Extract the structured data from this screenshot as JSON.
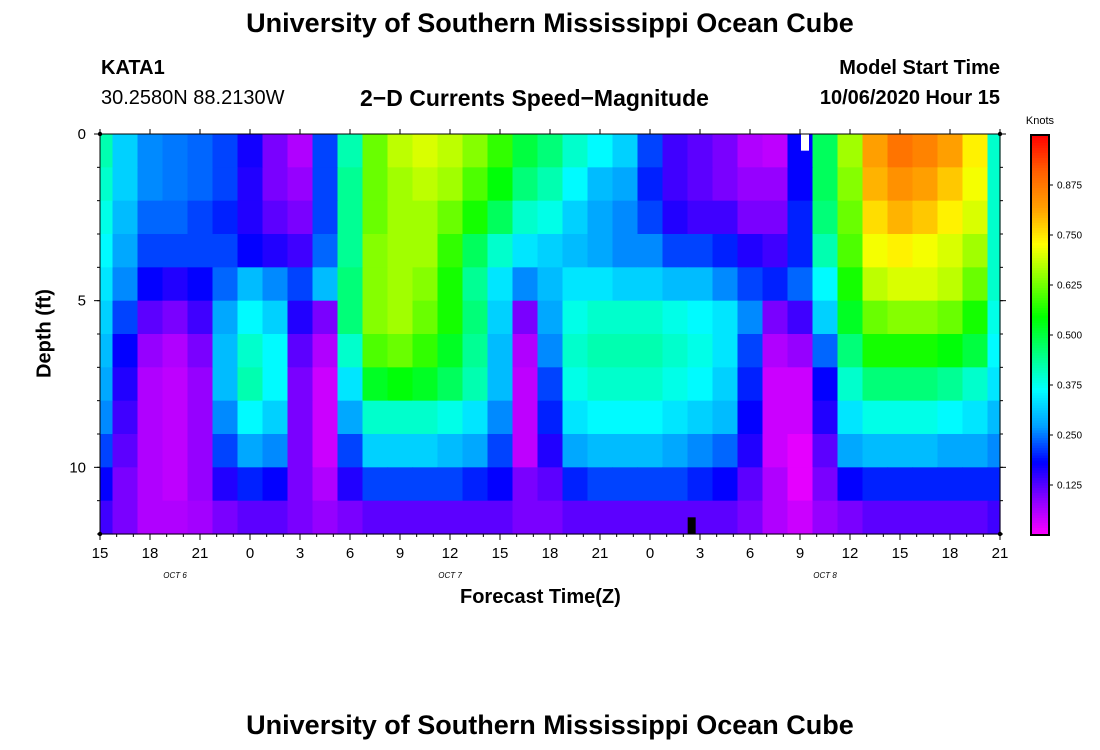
{
  "titles": {
    "top": "University of Southern Mississippi Ocean Cube",
    "bottom": "University of Southern Mississippi Ocean Cube"
  },
  "header": {
    "station": "KATA1",
    "location": "30.2580N 88.2130W",
    "subtitle": "2−D Currents Speed−Magnitude",
    "model_label": "Model Start Time",
    "model_time": "10/06/2020 Hour 15"
  },
  "colorbar": {
    "unit": "Knots",
    "ticks": [
      "0.125",
      "0.250",
      "0.375",
      "0.500",
      "0.625",
      "0.750",
      "0.875"
    ],
    "tick_values": [
      0.125,
      0.25,
      0.375,
      0.5,
      0.625,
      0.75,
      0.875
    ],
    "range": [
      0.0,
      1.0
    ],
    "colors": [
      "#ff00ff",
      "#8800ff",
      "#0000ff",
      "#00a0ff",
      "#00ffff",
      "#00ff80",
      "#00ff00",
      "#80ff00",
      "#ffff00",
      "#ffa000",
      "#ff6000",
      "#ff0000"
    ]
  },
  "chart_data": {
    "type": "heatmap",
    "title": "2−D Currents Speed−Magnitude",
    "xlabel": "Forecast Time(Z)",
    "ylabel": "Depth (ft)",
    "x_ticks": [
      "15",
      "18",
      "21",
      "0",
      "3",
      "6",
      "9",
      "12",
      "15",
      "18",
      "21",
      "0",
      "3",
      "6",
      "9",
      "12",
      "15",
      "18",
      "21"
    ],
    "x_range_hours": [
      0,
      54
    ],
    "date_labels": [
      {
        "label": "OCT 6",
        "hour": 4.5
      },
      {
        "label": "OCT 7",
        "hour": 21
      },
      {
        "label": "OCT 8",
        "hour": 43.5
      }
    ],
    "y_ticks": [
      0,
      5,
      10
    ],
    "ylim": [
      0,
      12
    ],
    "y_reversed": true,
    "depth_levels": [
      0.5,
      1.5,
      2.5,
      3.5,
      4.5,
      5.5,
      6.5,
      7.5,
      8.5,
      9.5,
      10.5,
      11.5
    ],
    "time_hours": [
      0,
      1.5,
      3,
      4.5,
      6,
      7.5,
      9,
      10.5,
      12,
      13.5,
      15,
      16.5,
      18,
      19.5,
      21,
      22.5,
      24,
      25.5,
      27,
      28.5,
      30,
      31.5,
      33,
      34.5,
      36,
      37.5,
      39,
      40.5,
      42,
      43.5,
      45,
      46.5,
      48,
      49.5,
      51,
      52.5,
      54
    ],
    "speed_knots": [
      [
        0.42,
        0.32,
        0.26,
        0.25,
        0.24,
        0.22,
        0.17,
        0.1,
        0.06,
        0.22,
        0.42,
        0.62,
        0.68,
        0.7,
        0.68,
        0.64,
        0.58,
        0.5,
        0.46,
        0.4,
        0.36,
        0.32,
        0.22,
        0.14,
        0.12,
        0.1,
        0.06,
        0.05,
        0.18,
        0.48,
        0.66,
        0.82,
        0.88,
        0.86,
        0.82,
        0.74,
        0.4
      ],
      [
        0.4,
        0.32,
        0.26,
        0.25,
        0.24,
        0.22,
        0.16,
        0.1,
        0.08,
        0.22,
        0.44,
        0.62,
        0.66,
        0.68,
        0.66,
        0.6,
        0.54,
        0.46,
        0.42,
        0.36,
        0.3,
        0.28,
        0.2,
        0.14,
        0.12,
        0.1,
        0.08,
        0.08,
        0.18,
        0.48,
        0.64,
        0.8,
        0.84,
        0.82,
        0.78,
        0.72,
        0.4
      ],
      [
        0.38,
        0.3,
        0.24,
        0.24,
        0.22,
        0.2,
        0.16,
        0.12,
        0.1,
        0.22,
        0.44,
        0.62,
        0.66,
        0.66,
        0.62,
        0.56,
        0.48,
        0.4,
        0.38,
        0.32,
        0.28,
        0.26,
        0.22,
        0.16,
        0.14,
        0.14,
        0.1,
        0.1,
        0.2,
        0.46,
        0.62,
        0.76,
        0.8,
        0.78,
        0.74,
        0.7,
        0.4
      ],
      [
        0.36,
        0.28,
        0.22,
        0.22,
        0.22,
        0.22,
        0.18,
        0.16,
        0.14,
        0.24,
        0.44,
        0.64,
        0.66,
        0.66,
        0.58,
        0.48,
        0.4,
        0.34,
        0.32,
        0.3,
        0.28,
        0.26,
        0.26,
        0.22,
        0.22,
        0.2,
        0.16,
        0.14,
        0.2,
        0.42,
        0.6,
        0.72,
        0.74,
        0.72,
        0.7,
        0.66,
        0.4
      ],
      [
        0.34,
        0.26,
        0.18,
        0.16,
        0.18,
        0.24,
        0.3,
        0.26,
        0.22,
        0.3,
        0.46,
        0.64,
        0.66,
        0.64,
        0.56,
        0.44,
        0.34,
        0.26,
        0.3,
        0.34,
        0.34,
        0.32,
        0.32,
        0.3,
        0.3,
        0.26,
        0.22,
        0.2,
        0.24,
        0.36,
        0.56,
        0.68,
        0.7,
        0.7,
        0.68,
        0.62,
        0.4
      ],
      [
        0.32,
        0.22,
        0.12,
        0.1,
        0.14,
        0.28,
        0.36,
        0.32,
        0.16,
        0.1,
        0.46,
        0.64,
        0.66,
        0.62,
        0.56,
        0.46,
        0.32,
        0.1,
        0.28,
        0.38,
        0.4,
        0.4,
        0.4,
        0.38,
        0.36,
        0.34,
        0.26,
        0.1,
        0.14,
        0.32,
        0.52,
        0.62,
        0.64,
        0.64,
        0.62,
        0.56,
        0.38
      ],
      [
        0.3,
        0.18,
        0.08,
        0.06,
        0.1,
        0.3,
        0.4,
        0.36,
        0.12,
        0.06,
        0.4,
        0.6,
        0.62,
        0.58,
        0.52,
        0.44,
        0.3,
        0.06,
        0.26,
        0.4,
        0.42,
        0.42,
        0.42,
        0.4,
        0.38,
        0.34,
        0.22,
        0.06,
        0.08,
        0.24,
        0.46,
        0.56,
        0.56,
        0.56,
        0.54,
        0.5,
        0.36
      ],
      [
        0.28,
        0.16,
        0.06,
        0.05,
        0.08,
        0.3,
        0.42,
        0.36,
        0.1,
        0.04,
        0.34,
        0.52,
        0.54,
        0.52,
        0.48,
        0.42,
        0.3,
        0.05,
        0.22,
        0.38,
        0.4,
        0.4,
        0.4,
        0.38,
        0.36,
        0.32,
        0.2,
        0.04,
        0.04,
        0.18,
        0.4,
        0.46,
        0.46,
        0.46,
        0.44,
        0.4,
        0.34
      ],
      [
        0.26,
        0.14,
        0.06,
        0.05,
        0.08,
        0.26,
        0.36,
        0.32,
        0.1,
        0.04,
        0.28,
        0.4,
        0.4,
        0.4,
        0.38,
        0.34,
        0.26,
        0.05,
        0.2,
        0.34,
        0.36,
        0.36,
        0.36,
        0.34,
        0.32,
        0.3,
        0.18,
        0.04,
        0.04,
        0.16,
        0.34,
        0.38,
        0.38,
        0.38,
        0.36,
        0.34,
        0.3
      ],
      [
        0.22,
        0.12,
        0.06,
        0.05,
        0.08,
        0.22,
        0.28,
        0.26,
        0.1,
        0.04,
        0.22,
        0.32,
        0.32,
        0.32,
        0.3,
        0.28,
        0.22,
        0.05,
        0.16,
        0.28,
        0.3,
        0.3,
        0.3,
        0.28,
        0.26,
        0.24,
        0.16,
        0.04,
        0.02,
        0.12,
        0.28,
        0.3,
        0.3,
        0.3,
        0.28,
        0.28,
        0.26
      ],
      [
        0.18,
        0.1,
        0.06,
        0.05,
        0.08,
        0.16,
        0.2,
        0.18,
        0.1,
        0.06,
        0.16,
        0.22,
        0.22,
        0.22,
        0.22,
        0.2,
        0.18,
        0.1,
        0.12,
        0.2,
        0.22,
        0.22,
        0.22,
        0.22,
        0.2,
        0.18,
        0.12,
        0.06,
        0.02,
        0.1,
        0.18,
        0.2,
        0.2,
        0.2,
        0.2,
        0.2,
        0.2
      ],
      [
        0.14,
        0.1,
        0.06,
        0.06,
        0.07,
        0.1,
        0.12,
        0.12,
        0.1,
        0.08,
        0.1,
        0.12,
        0.12,
        0.12,
        0.12,
        0.12,
        0.12,
        0.1,
        0.1,
        0.12,
        0.12,
        0.12,
        0.12,
        0.12,
        0.12,
        0.12,
        0.1,
        0.06,
        0.04,
        0.08,
        0.1,
        0.12,
        0.12,
        0.12,
        0.12,
        0.12,
        0.14
      ]
    ],
    "missing_markers": [
      {
        "hour": 42.3,
        "depth": [
          0,
          0.5
        ],
        "color": "#ffffff"
      },
      {
        "hour": 35.5,
        "depth": [
          11.5,
          12
        ],
        "color": "#000000"
      }
    ]
  }
}
